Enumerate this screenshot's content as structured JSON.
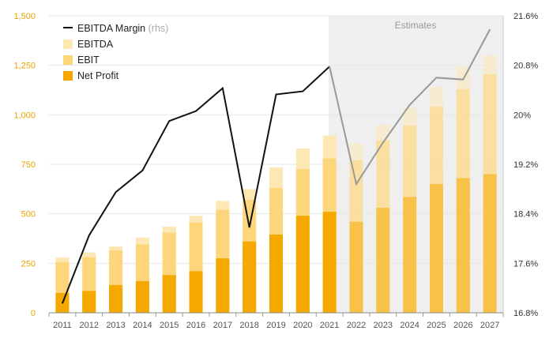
{
  "chart_data": {
    "type": "bar",
    "categories": [
      "2011",
      "2012",
      "2013",
      "2014",
      "2015",
      "2016",
      "2017",
      "2018",
      "2019",
      "2020",
      "2021",
      "2022",
      "2023",
      "2024",
      "2025",
      "2026",
      "2027"
    ],
    "series": [
      {
        "name": "EBITDA",
        "values": [
          280,
          305,
          335,
          380,
          435,
          490,
          565,
          625,
          735,
          830,
          895,
          855,
          950,
          1035,
          1140,
          1245,
          1300
        ],
        "color": "#fde7b5"
      },
      {
        "name": "EBIT",
        "values": [
          255,
          280,
          315,
          345,
          405,
          455,
          520,
          570,
          630,
          725,
          780,
          770,
          870,
          945,
          1040,
          1130,
          1205
        ],
        "color": "#fdd57a"
      },
      {
        "name": "Net Profit",
        "values": [
          100,
          110,
          140,
          160,
          190,
          210,
          275,
          360,
          395,
          490,
          510,
          460,
          530,
          585,
          650,
          680,
          700
        ],
        "color": "#f5a800"
      },
      {
        "name": "EBITDA Margin",
        "axis": "right",
        "values": [
          16.95,
          18.05,
          18.75,
          19.1,
          19.9,
          20.06,
          20.43,
          18.18,
          20.33,
          20.38,
          20.78,
          18.88,
          19.55,
          20.16,
          20.6,
          20.57,
          21.38
        ],
        "color": "#111111",
        "estimate_color": "#999999"
      }
    ],
    "legend": {
      "line_label": "EBITDA Margin",
      "line_sub": "(rhs)",
      "items": [
        "EBITDA",
        "EBIT",
        "Net Profit"
      ]
    },
    "y_left": {
      "ylim": [
        0,
        1500
      ],
      "ticks": [
        "0",
        "250",
        "500",
        "750",
        "1,000",
        "1,250",
        "1,500"
      ]
    },
    "y_right": {
      "ylim": [
        16.8,
        21.6
      ],
      "ticks": [
        "16.8%",
        "17.6%",
        "18.4%",
        "19.2%",
        "20%",
        "20.8%",
        "21.6%"
      ]
    },
    "estimates": {
      "label": "Estimates",
      "from_index": 11
    },
    "title": "",
    "xlabel": "",
    "ylabel": ""
  }
}
